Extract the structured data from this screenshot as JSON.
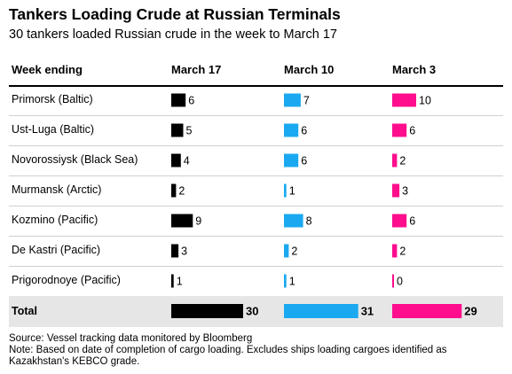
{
  "title": "Tankers Loading Crude at Russian Terminals",
  "subtitle": "30 tankers loaded Russian crude in the week to March 17",
  "source": "Source: Vessel tracking data monitored by Bloomberg",
  "note_line1": "Note: Based on date of completion of cargo loading. Excludes ships loading cargoes identified as",
  "note_line2": "Kazakhstan's KEBCO grade.",
  "chart_data": {
    "type": "bar",
    "row_header": "Week ending",
    "categories": [
      "Primorsk (Baltic)",
      "Ust-Luga (Baltic)",
      "Novorossiysk (Black Sea)",
      "Murmansk (Arctic)",
      "Kozmino (Pacific)",
      "De Kastri (Pacific)",
      "Prigorodnoye (Pacific)",
      "Total"
    ],
    "series": [
      {
        "name": "March 17",
        "color": "#000000",
        "values": [
          6,
          5,
          4,
          2,
          9,
          3,
          1,
          30
        ]
      },
      {
        "name": "March 10",
        "color": "#1aa9f0",
        "values": [
          7,
          6,
          6,
          1,
          8,
          2,
          1,
          31
        ]
      },
      {
        "name": "March 3",
        "color": "#ff0d8d",
        "values": [
          10,
          6,
          2,
          3,
          6,
          2,
          0,
          29
        ]
      }
    ]
  }
}
